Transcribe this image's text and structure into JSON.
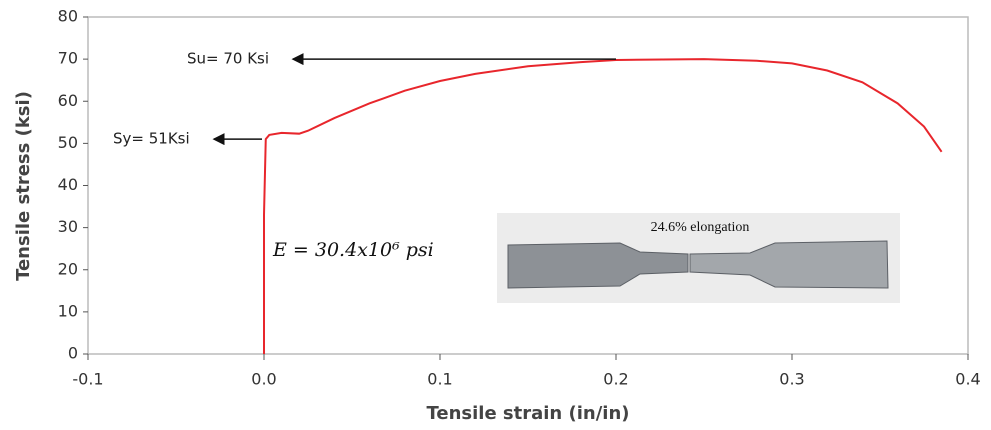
{
  "chart_data": {
    "type": "line",
    "xlabel": "Tensile strain (in/in)",
    "ylabel": "Tensile stress (ksi)",
    "x": [
      0,
      0,
      0.001,
      0.003,
      0.01,
      0.02,
      0.025,
      0.04,
      0.06,
      0.08,
      0.1,
      0.12,
      0.15,
      0.18,
      0.2,
      0.25,
      0.28,
      0.3,
      0.32,
      0.34,
      0.36,
      0.375,
      0.385
    ],
    "values": [
      0,
      33,
      51,
      52,
      52.5,
      52.3,
      53,
      56,
      59.5,
      62.5,
      64.8,
      66.5,
      68.3,
      69.3,
      69.8,
      70,
      69.6,
      69,
      67.3,
      64.5,
      59.5,
      54,
      48
    ],
    "color": "#e8262c",
    "xlim": [
      -0.1,
      0.4
    ],
    "xticks": [
      -0.1,
      {
        "value": 0,
        "label": "0.0"
      },
      0.1,
      0.2,
      0.3,
      0.4
    ],
    "ylim": [
      0,
      80
    ],
    "yticks": [
      0,
      10,
      20,
      30,
      40,
      50,
      60,
      70,
      80
    ],
    "grid": false,
    "annotations": [
      {
        "text": "Su= 70 Ksi",
        "point": [
          0.2,
          70
        ]
      },
      {
        "text": "Sy= 51Ksi",
        "point": [
          0,
          51
        ]
      },
      {
        "text": "E = 30.4x10⁶ psi"
      }
    ],
    "inset_caption": "24.6% elongation"
  }
}
